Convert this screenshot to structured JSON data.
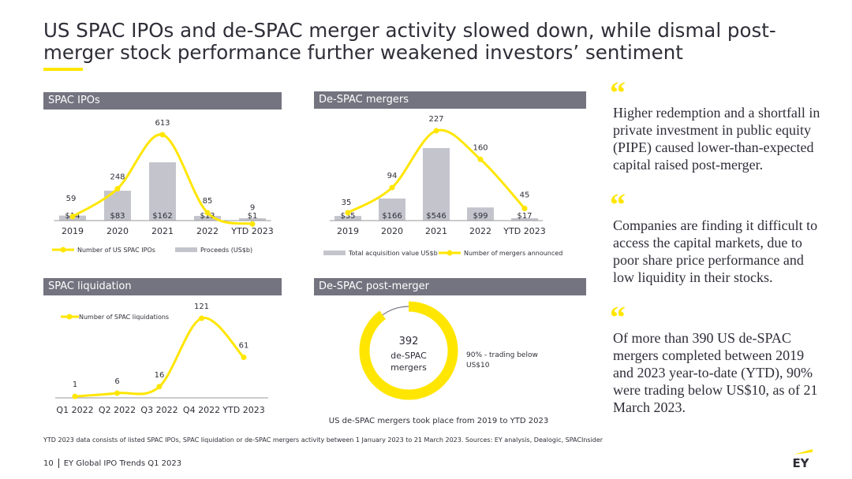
{
  "title": "US SPAC IPOs and de-SPAC merger activity slowed down, while dismal post-merger stock performance further weakened investors’ sentiment",
  "panels": {
    "spac_ipos": "SPAC IPOs",
    "de_spac_mergers": "De-SPAC mergers",
    "spac_liquidation": "SPAC liquidation",
    "de_spac_post_merger": "De-SPAC post-merger"
  },
  "chart_data": [
    {
      "id": "spac_ipos",
      "type": "bar+line",
      "title": "SPAC IPOs",
      "categories": [
        "2019",
        "2020",
        "2021",
        "2022",
        "YTD 2023"
      ],
      "series": [
        {
          "name": "Proceeds (US$b)",
          "kind": "bar",
          "values": [
            14,
            83,
            162,
            13,
            1
          ],
          "labels": [
            "$14",
            "$83",
            "$162",
            "$13",
            "$1"
          ]
        },
        {
          "name": "Number of US SPAC IPOs",
          "kind": "line",
          "values": [
            59,
            248,
            613,
            85,
            9
          ]
        }
      ]
    },
    {
      "id": "de_spac_mergers",
      "type": "bar+line",
      "title": "De-SPAC mergers",
      "categories": [
        "2019",
        "2020",
        "2021",
        "2022",
        "YTD 2023"
      ],
      "series": [
        {
          "name": "Total acquisition value US$b",
          "kind": "bar",
          "values": [
            35,
            166,
            546,
            99,
            17
          ],
          "labels": [
            "$35",
            "$166",
            "$546",
            "$99",
            "$17"
          ]
        },
        {
          "name": "Number of mergers announced",
          "kind": "line",
          "values": [
            35,
            94,
            227,
            160,
            45
          ]
        }
      ]
    },
    {
      "id": "spac_liquidation",
      "type": "line",
      "title": "SPAC liquidation",
      "categories": [
        "Q1 2022",
        "Q2 2022",
        "Q3 2022",
        "Q4 2022",
        "YTD 2023"
      ],
      "series": [
        {
          "name": "Number of SPAC liquidations",
          "kind": "line",
          "values": [
            1,
            6,
            16,
            121,
            61
          ]
        }
      ]
    },
    {
      "id": "de_spac_post_merger",
      "type": "pie",
      "title": "De-SPAC post-merger",
      "center_value": "392",
      "center_label_1": "de-SPAC",
      "center_label_2": "mergers",
      "slices": [
        {
          "name": "trading below US$10",
          "value": 90,
          "label": "90% - trading below US$10"
        },
        {
          "name": "other",
          "value": 10
        }
      ],
      "caption": "US de-SPAC mergers took place from 2019 to YTD 2023"
    }
  ],
  "quotes": [
    "Higher redemption and a shortfall in private investment in public equity (PIPE) caused lower-than-expected capital raised post-merger.",
    "Companies are finding it difficult to access the capital markets, due to poor share price performance and low liquidity in their stocks.",
    "Of more than 390 US de-SPAC mergers completed between 2019 and 2023 year-to-date (YTD), 90% were trading below US$10, as of 21 March 2023."
  ],
  "quote_mark": "“",
  "footnote": "YTD 2023 data consists of listed SPAC IPOs, SPAC liquidation or de-SPAC mergers activity between 1 January 2023 to 21 March 2023. Sources: EY analysis, Dealogic, SPACInsider",
  "footer": {
    "page": "10",
    "text": "EY Global IPO Trends Q1 2023"
  },
  "logo": "EY",
  "colors": {
    "yellow": "#ffe600",
    "bar": "#c4c4cd",
    "header": "#747480",
    "text": "#2e2e38"
  }
}
